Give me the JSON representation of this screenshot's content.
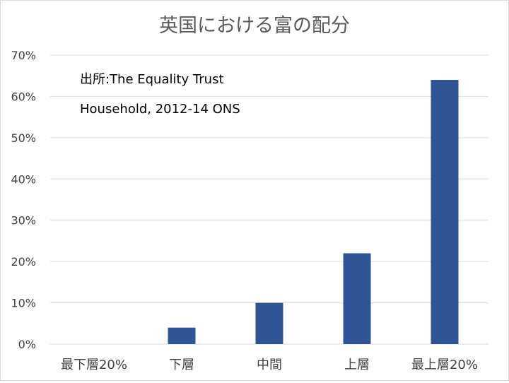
{
  "chart_data": {
    "type": "bar",
    "title": "英国における富の配分",
    "annotation": {
      "line1": "出所:The Equality Trust",
      "line2": "Household, 2012-14 ONS"
    },
    "categories": [
      "最下層20%",
      "下層",
      "中間",
      "上層",
      "最上層20%"
    ],
    "values": [
      0,
      4,
      10,
      22,
      64
    ],
    "ylim": [
      0,
      70
    ],
    "yticks": [
      0,
      10,
      20,
      30,
      40,
      50,
      60,
      70
    ],
    "ytick_labels": [
      "0%",
      "10%",
      "20%",
      "30%",
      "40%",
      "50%",
      "60%",
      "70%"
    ],
    "xlabel": "",
    "ylabel": "",
    "grid": true,
    "legend": "none",
    "bar_color": "#2f5597",
    "grid_color": "#d9d9d9",
    "text_color": "#404040",
    "title_color": "#595959"
  }
}
